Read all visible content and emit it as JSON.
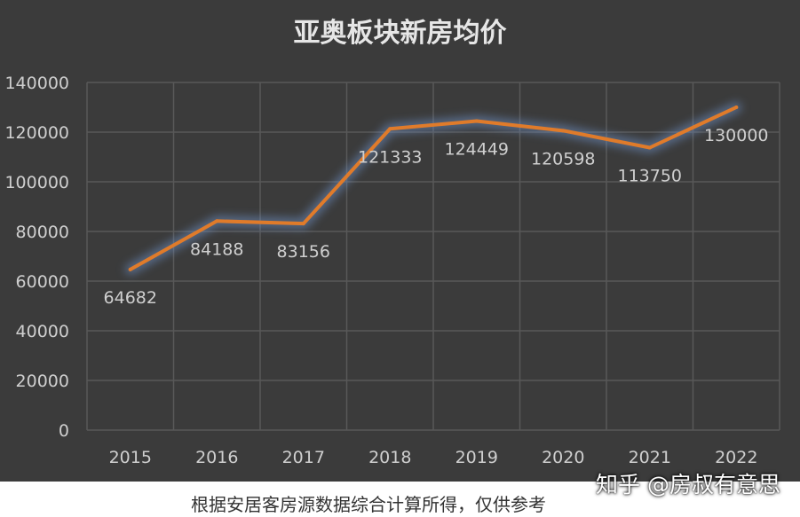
{
  "chart_data": {
    "type": "line",
    "title": "亚奥板块新房均价",
    "x": [
      "2015",
      "2016",
      "2017",
      "2018",
      "2019",
      "2020",
      "2021",
      "2022"
    ],
    "series": [
      {
        "values": [
          64682,
          84188,
          83156,
          121333,
          124449,
          120598,
          113750,
          130000
        ]
      }
    ],
    "data_labels": [
      "64682",
      "84188",
      "83156",
      "121333",
      "124449",
      "120598",
      "113750",
      "130000"
    ],
    "y_ticks": [
      "0",
      "20000",
      "40000",
      "60000",
      "80000",
      "100000",
      "120000",
      "140000"
    ],
    "ylim": [
      0,
      140000
    ],
    "grid": true,
    "line_color": "#e07b2a",
    "background_color": "#3b3b3b"
  },
  "watermark": "知乎 @房叔有意思",
  "footnote": "根据安居客房源数据综合计算所得，仅供参考"
}
